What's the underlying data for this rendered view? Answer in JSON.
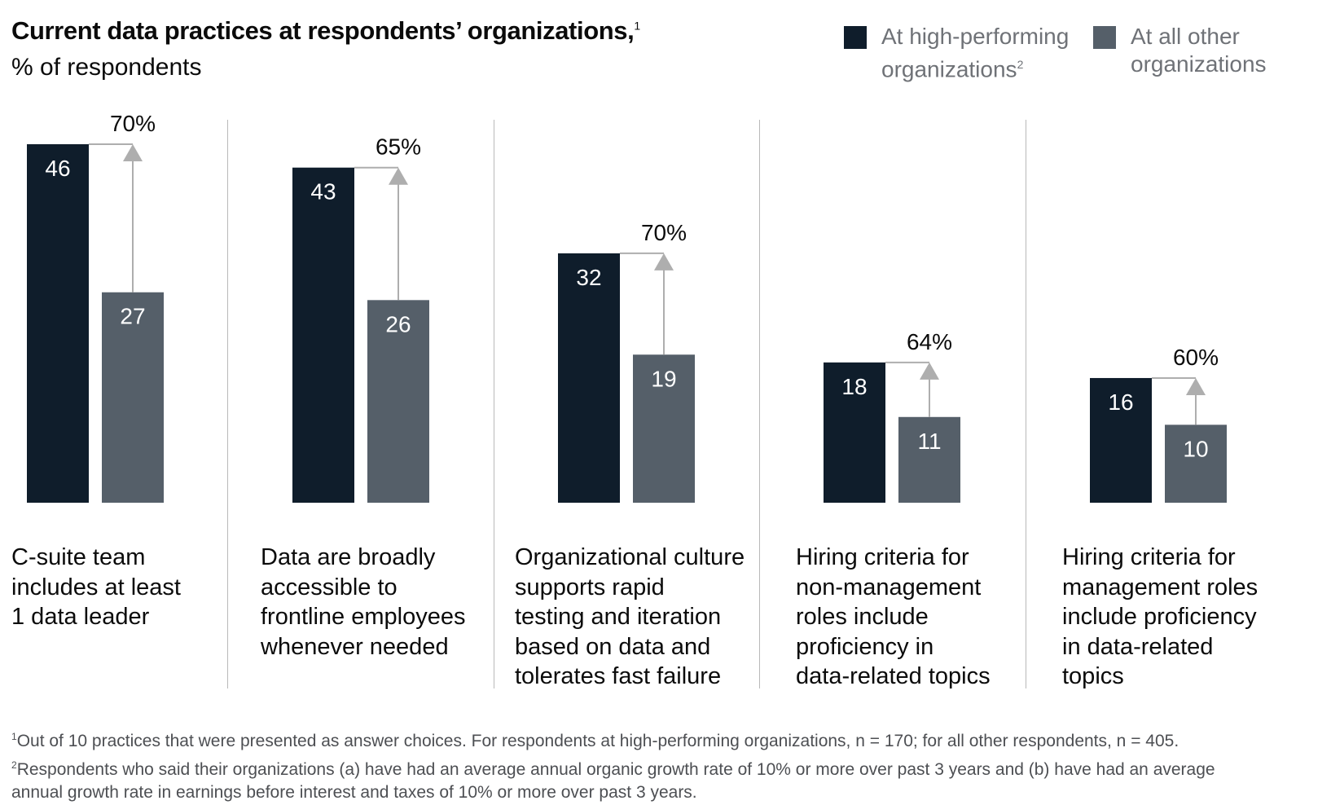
{
  "header": {
    "title": "Current data practices at respondents’ organizations,",
    "title_note": "1",
    "subtitle": "% of respondents"
  },
  "legend": [
    {
      "lines": [
        "At high-performing",
        "organizations"
      ],
      "note": "2",
      "color": "#0f1d2b"
    },
    {
      "lines": [
        "At all other",
        "organizations"
      ],
      "note": "",
      "color": "#555f69"
    }
  ],
  "chart_data": {
    "type": "bar",
    "title": "Current data practices at respondents’ organizations,",
    "ylabel": "% of respondents",
    "ylim": [
      0,
      46
    ],
    "grid": false,
    "legend_position": "top-right",
    "categories": [
      [
        "C-suite team",
        "includes at least",
        "1 data leader"
      ],
      [
        "Data are broadly",
        "accessible to",
        "frontline employees",
        "whenever needed"
      ],
      [
        "Organizational culture",
        "supports rapid",
        "testing and iteration",
        "based on data and",
        "tolerates fast failure"
      ],
      [
        "Hiring criteria for",
        "non-management",
        "roles include",
        "proficiency in",
        "data-related topics"
      ],
      [
        "Hiring criteria for",
        "management roles",
        "include proficiency",
        "in data-related",
        "topics"
      ]
    ],
    "series": [
      {
        "name": "At high-performing organizations",
        "values": [
          46,
          43,
          32,
          18,
          16
        ],
        "color": "#0f1d2b"
      },
      {
        "name": "At all other organizations",
        "values": [
          27,
          26,
          19,
          11,
          10
        ],
        "color": "#555f69"
      }
    ],
    "annotations": [
      "70%",
      "65%",
      "70%",
      "64%",
      "60%"
    ],
    "arrow_color": "#aeaeae"
  },
  "footnotes": [
    {
      "mark": "1",
      "lines": [
        "Out of 10 practices that were presented as answer choices. For respondents at high-performing organizations, n = 170; for all other respondents, n = 405."
      ]
    },
    {
      "mark": "2",
      "lines": [
        "Respondents who said their organizations (a) have had an average annual organic growth rate of 10% or more over past 3 years and (b) have had an average",
        " annual growth rate in earnings before interest and taxes of 10% or more over past 3 years."
      ]
    }
  ]
}
